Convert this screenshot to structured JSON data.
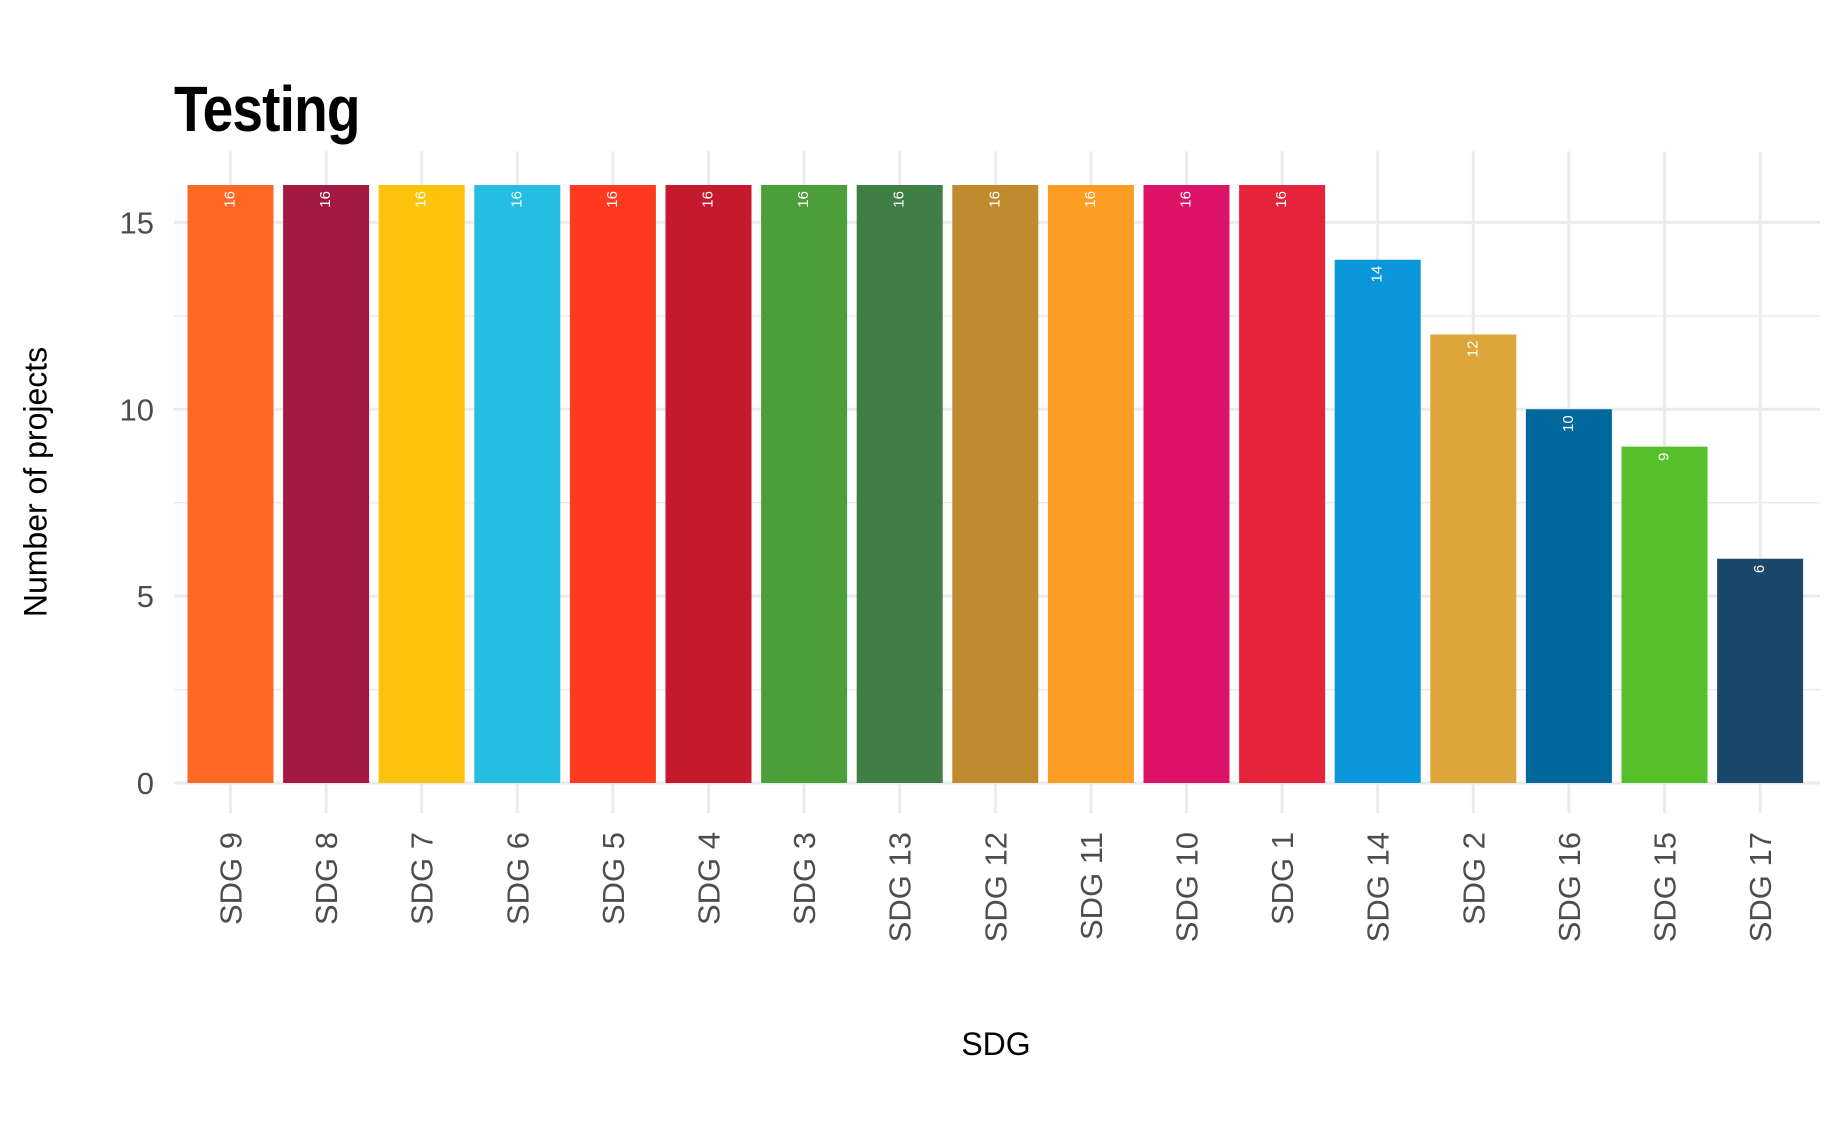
{
  "chart_data": {
    "type": "bar",
    "title": "Testing",
    "xlabel": "SDG",
    "ylabel": "Number of projects",
    "categories": [
      "SDG 9",
      "SDG 8",
      "SDG 7",
      "SDG 6",
      "SDG 5",
      "SDG 4",
      "SDG 3",
      "SDG 13",
      "SDG 12",
      "SDG 11",
      "SDG 10",
      "SDG 1",
      "SDG 14",
      "SDG 2",
      "SDG 16",
      "SDG 15",
      "SDG 17"
    ],
    "values": [
      16,
      16,
      16,
      16,
      16,
      16,
      16,
      16,
      16,
      16,
      16,
      16,
      14,
      12,
      10,
      9,
      6
    ],
    "colors": [
      "#FD6925",
      "#A21942",
      "#FCC30B",
      "#26BDE2",
      "#FF3A21",
      "#C5192D",
      "#4C9F38",
      "#3F7E44",
      "#BF8B2E",
      "#FD9D24",
      "#DD1367",
      "#E5243B",
      "#0A97D9",
      "#DDA63A",
      "#00689D",
      "#56C02B",
      "#19486A"
    ],
    "ylim": [
      0,
      16.9
    ],
    "yticks": [
      0,
      5,
      10,
      15
    ],
    "grid": true,
    "legend": "none"
  }
}
